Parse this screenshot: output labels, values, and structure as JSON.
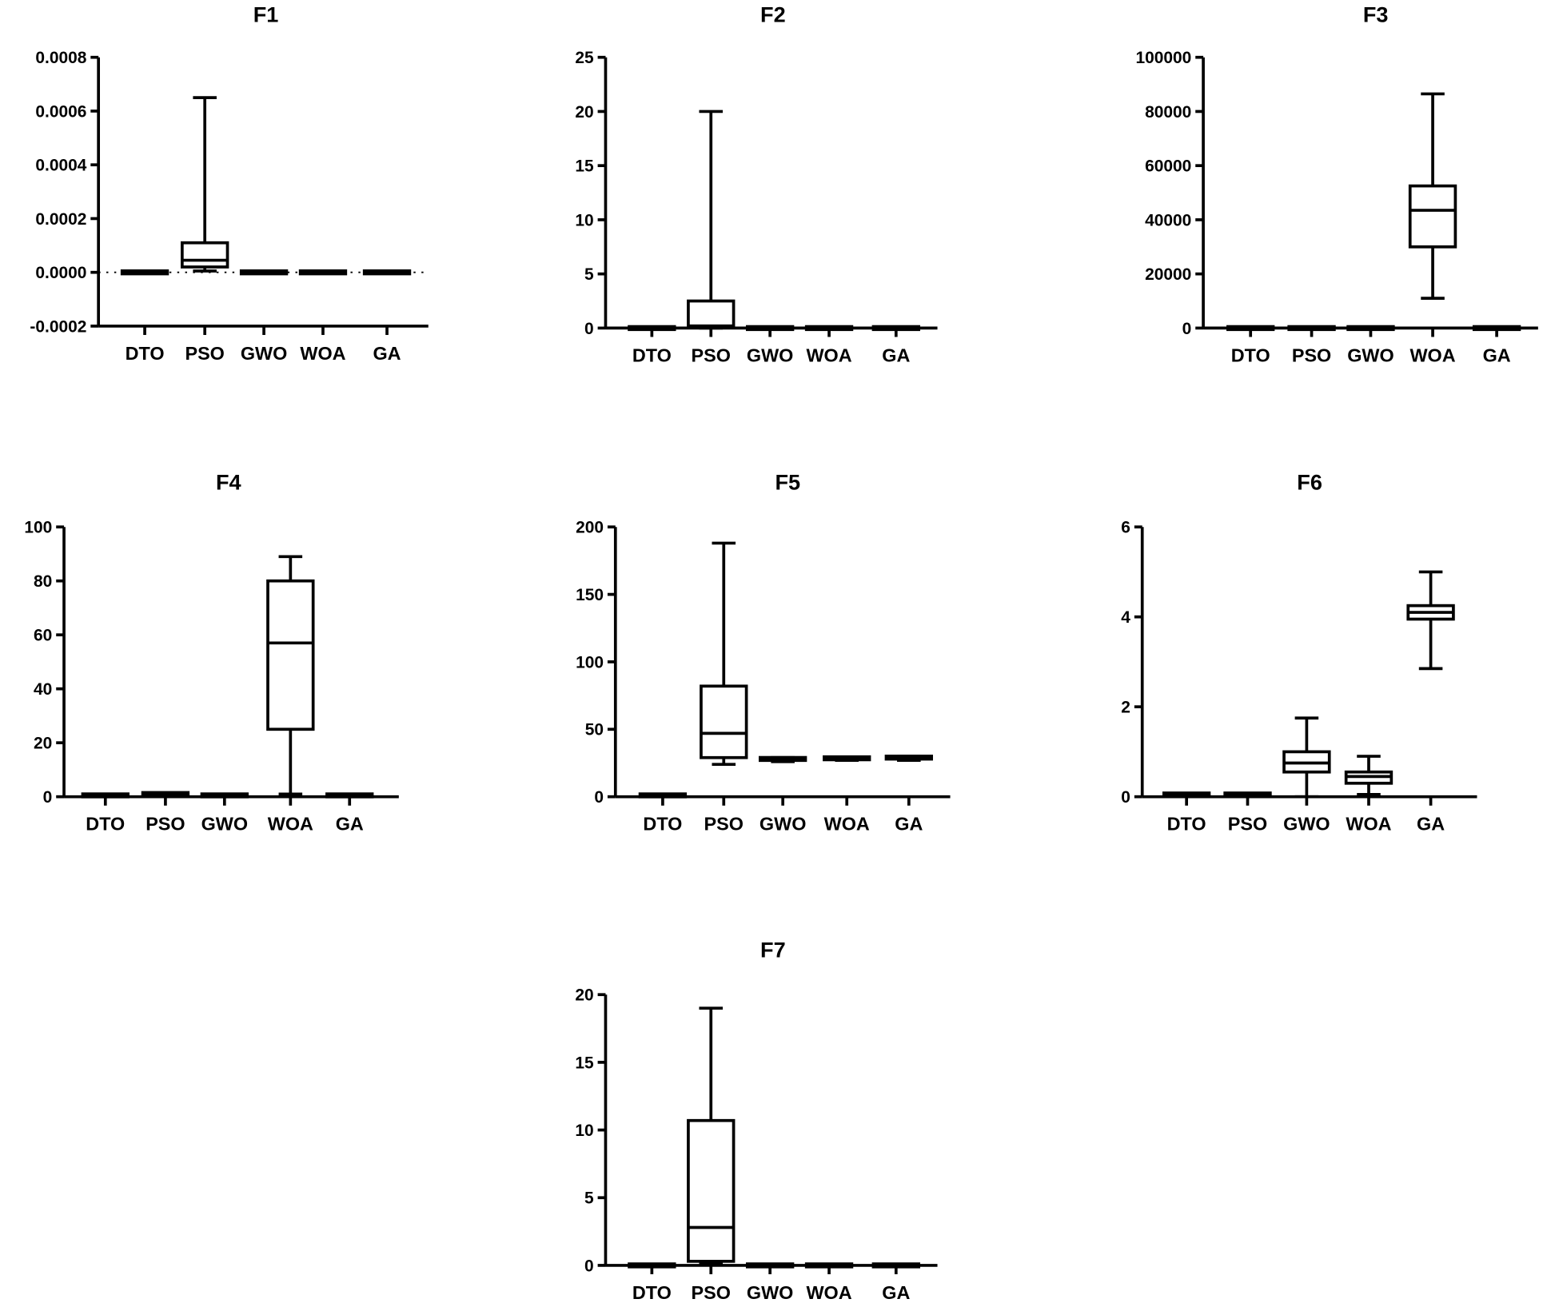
{
  "chart_data": [
    {
      "type": "box",
      "title": "F1",
      "categories": [
        "DTO",
        "PSO",
        "GWO",
        "WOA",
        "GA"
      ],
      "ylim": [
        -0.0002,
        0.0008
      ],
      "yticks": [
        -0.0002,
        0,
        0.0002,
        0.0004,
        0.0006,
        0.0008
      ],
      "ytick_labels": [
        "-0.0002",
        "0.0000",
        "0.0002",
        "0.0004",
        "0.0006",
        "0.0008"
      ],
      "zero_line": "dotted",
      "boxes": [
        [
          0,
          0,
          0,
          0,
          0
        ],
        [
          5e-06,
          2e-05,
          4.5e-05,
          0.00011,
          0.00065
        ],
        [
          0,
          0,
          0,
          0,
          0
        ],
        [
          0,
          0,
          0,
          0,
          0
        ],
        [
          0,
          0,
          0,
          0,
          0
        ]
      ]
    },
    {
      "type": "box",
      "title": "F2",
      "categories": [
        "DTO",
        "PSO",
        "GWO",
        "WOA",
        "GA"
      ],
      "ylim": [
        0,
        25
      ],
      "yticks": [
        0,
        5,
        10,
        15,
        20,
        25
      ],
      "ytick_labels": [
        "0",
        "5",
        "10",
        "15",
        "20",
        "25"
      ],
      "boxes": [
        [
          0,
          0,
          0,
          0,
          0
        ],
        [
          0,
          0.05,
          0.2,
          2.5,
          20
        ],
        [
          0,
          0,
          0,
          0,
          0
        ],
        [
          0,
          0,
          0,
          0,
          0
        ],
        [
          0,
          0,
          0,
          0,
          0
        ]
      ]
    },
    {
      "type": "box",
      "title": "F3",
      "categories": [
        "DTO",
        "PSO",
        "GWO",
        "WOA",
        "GA"
      ],
      "ylim": [
        0,
        100000
      ],
      "yticks": [
        0,
        20000,
        40000,
        60000,
        80000,
        100000
      ],
      "ytick_labels": [
        "0",
        "20000",
        "40000",
        "60000",
        "80000",
        "100000"
      ],
      "boxes": [
        [
          0,
          0,
          0,
          0,
          0
        ],
        [
          0,
          0,
          0,
          0,
          0
        ],
        [
          0,
          0,
          0,
          0,
          0
        ],
        [
          11000,
          30000,
          43500,
          52500,
          86500
        ],
        [
          0,
          0,
          0,
          0,
          0
        ]
      ]
    },
    {
      "type": "box",
      "title": "F4",
      "categories": [
        "DTO",
        "PSO",
        "GWO",
        "WOA",
        "GA"
      ],
      "ylim": [
        0,
        100
      ],
      "yticks": [
        0,
        20,
        40,
        60,
        80,
        100
      ],
      "ytick_labels": [
        "0",
        "20",
        "40",
        "60",
        "80",
        "100"
      ],
      "boxes": [
        [
          0.5,
          0.5,
          0.5,
          0.5,
          0.5
        ],
        [
          1,
          1,
          1,
          1,
          1
        ],
        [
          0.5,
          0.5,
          0.5,
          0.5,
          0.5
        ],
        [
          1,
          25,
          57,
          80,
          89
        ],
        [
          0.5,
          0.5,
          0.5,
          0.5,
          0.5
        ]
      ]
    },
    {
      "type": "box",
      "title": "F5",
      "categories": [
        "DTO",
        "PSO",
        "GWO",
        "WOA",
        "GA"
      ],
      "ylim": [
        0,
        200
      ],
      "yticks": [
        0,
        50,
        100,
        150,
        200
      ],
      "ytick_labels": [
        "0",
        "50",
        "100",
        "150",
        "200"
      ],
      "boxes": [
        [
          1,
          1,
          1,
          1,
          1
        ],
        [
          24,
          29,
          47,
          82,
          188
        ],
        [
          26,
          27,
          27.5,
          28,
          29
        ],
        [
          27,
          27.5,
          28,
          28.5,
          29
        ],
        [
          27,
          28,
          28.5,
          29,
          30
        ]
      ]
    },
    {
      "type": "box",
      "title": "F6",
      "categories": [
        "DTO",
        "PSO",
        "GWO",
        "WOA",
        "GA"
      ],
      "ylim": [
        0,
        6
      ],
      "yticks": [
        0,
        2,
        4,
        6
      ],
      "ytick_labels": [
        "0",
        "2",
        "4",
        "6"
      ],
      "boxes": [
        [
          0.05,
          0.05,
          0.05,
          0.05,
          0.05
        ],
        [
          0.05,
          0.05,
          0.05,
          0.05,
          0.05
        ],
        [
          0,
          0.55,
          0.75,
          1.0,
          1.75
        ],
        [
          0.05,
          0.3,
          0.45,
          0.55,
          0.9
        ],
        [
          2.85,
          3.95,
          4.1,
          4.25,
          5.0
        ]
      ]
    },
    {
      "type": "box",
      "title": "F7",
      "categories": [
        "DTO",
        "PSO",
        "GWO",
        "WOA",
        "GA"
      ],
      "ylim": [
        0,
        20
      ],
      "yticks": [
        0,
        5,
        10,
        15,
        20
      ],
      "ytick_labels": [
        "0",
        "5",
        "10",
        "15",
        "20"
      ],
      "boxes": [
        [
          0,
          0,
          0,
          0,
          0
        ],
        [
          0.1,
          0.3,
          2.8,
          10.7,
          19
        ],
        [
          0,
          0,
          0,
          0,
          0
        ],
        [
          0,
          0,
          0,
          0,
          0
        ],
        [
          0,
          0,
          0,
          0,
          0
        ]
      ]
    }
  ]
}
